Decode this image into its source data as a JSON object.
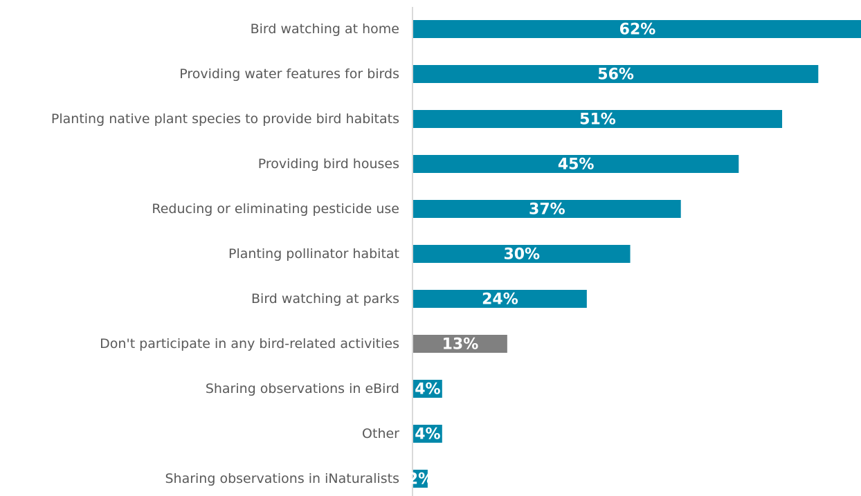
{
  "chart_data": {
    "type": "bar",
    "orientation": "horizontal",
    "categories": [
      "Bird watching at home",
      "Providing water features for birds",
      "Planting native plant species to provide bird habitats",
      "Providing bird houses",
      "Reducing or eliminating pesticide use",
      "Planting pollinator habitat",
      "Bird watching at parks",
      "Don't participate in any bird-related activities",
      "Sharing observations in eBird",
      "Other",
      "Sharing observations in iNaturalists"
    ],
    "values": [
      62,
      56,
      51,
      45,
      37,
      30,
      24,
      13,
      4,
      4,
      2
    ],
    "data_labels": [
      "62%",
      "56%",
      "51%",
      "45%",
      "37%",
      "30%",
      "24%",
      "13%",
      "4%",
      "4%",
      "2%"
    ],
    "xlim": [
      0,
      60
    ],
    "grid": false,
    "legend": "none",
    "colors": {
      "primary": "#0088AA",
      "highlight": "#808080",
      "label_text": "#595959",
      "data_label_text": "#FFFFFF",
      "axis_line": "#D9D9D9"
    },
    "highlight_categories": [
      "Don't participate in any bird-related activities"
    ]
  }
}
